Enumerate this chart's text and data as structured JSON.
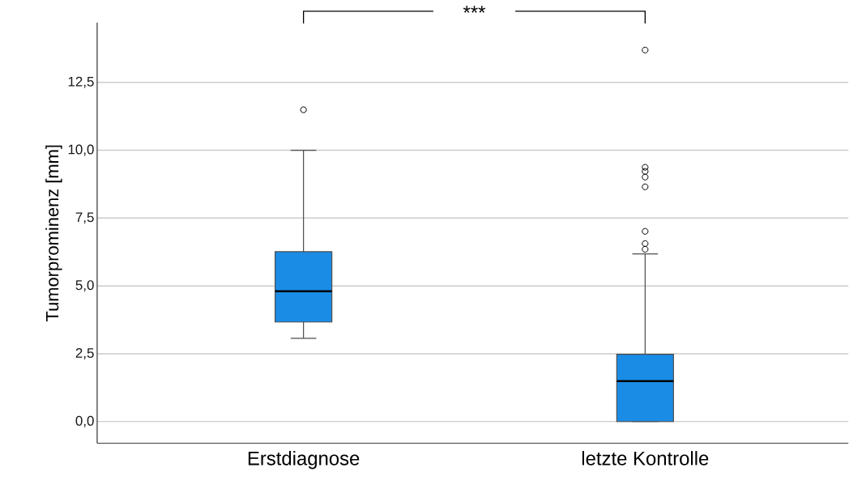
{
  "chart_data": {
    "type": "box",
    "ylabel": "Tumorprominenz [mm]",
    "categories": [
      "Erstdiagnose",
      "letzte Kontrolle"
    ],
    "boxes": [
      {
        "low": 3.07,
        "q1": 3.67,
        "median": 4.8,
        "q3": 6.26,
        "high": 10.0,
        "outliers": [
          11.49
        ]
      },
      {
        "low": 0.0,
        "q1": 0.0,
        "median": 1.49,
        "q3": 2.48,
        "high": 6.18,
        "outliers": [
          6.35,
          6.56,
          7.01,
          8.65,
          9.01,
          9.22,
          9.37,
          13.69
        ]
      }
    ],
    "color": "#1a8ce6",
    "ylim": [
      -0.8,
      14.7
    ],
    "yticks": [
      {
        "value": 0,
        "label": "0,0"
      },
      {
        "value": 2.5,
        "label": "2,5"
      },
      {
        "value": 5,
        "label": "5,0"
      },
      {
        "value": 7.5,
        "label": "7,5"
      },
      {
        "value": 10,
        "label": "10,0"
      },
      {
        "value": 12.5,
        "label": "12,5"
      }
    ],
    "grid": "y",
    "annotations": [
      "***"
    ]
  }
}
